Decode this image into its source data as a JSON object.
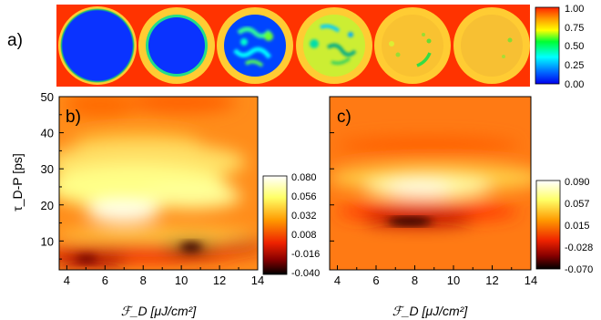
{
  "panels": {
    "a": {
      "label": "a)",
      "colorbar_ticks": [
        "1.00",
        "0.75",
        "0.50",
        "0.25",
        "0.00"
      ]
    },
    "b": {
      "label": "b)",
      "colorbar_ticks": [
        "0.080",
        "0.056",
        "0.032",
        "0.008",
        "-0.016",
        "-0.040"
      ]
    },
    "c": {
      "label": "c)",
      "colorbar_ticks": [
        "0.090",
        "0.057",
        "0.015",
        "-0.028",
        "-0.070"
      ]
    }
  },
  "axes": {
    "ylabel": "τ_D-P [ps]",
    "xlabel": "ℱ_D [μJ/cm²]"
  },
  "chart_data": [
    {
      "type": "heatmap",
      "panel": "a",
      "description_of_series": "six circular maps",
      "circle_count": 6,
      "colorbar_range": [
        0.0,
        1.0
      ],
      "colors": {
        "low": "#0000ff",
        "high": "#ff3300",
        "mid": "#ffff00"
      }
    },
    {
      "type": "heatmap",
      "panel": "b",
      "x_ticks": [
        "4",
        "6",
        "8",
        "10",
        "12",
        "14"
      ],
      "y_ticks": [
        "10",
        "20",
        "30",
        "40",
        "50"
      ],
      "xlim": [
        3.6,
        14
      ],
      "ylim": [
        2,
        50
      ],
      "colorbar_range": [
        -0.04,
        0.08
      ]
    },
    {
      "type": "heatmap",
      "panel": "c",
      "x_ticks": [
        "4",
        "6",
        "8",
        "10",
        "12",
        "14"
      ],
      "xlim": [
        3.6,
        14
      ],
      "ylim": [
        2,
        50
      ],
      "colorbar_range": [
        -0.07,
        0.09
      ]
    }
  ]
}
